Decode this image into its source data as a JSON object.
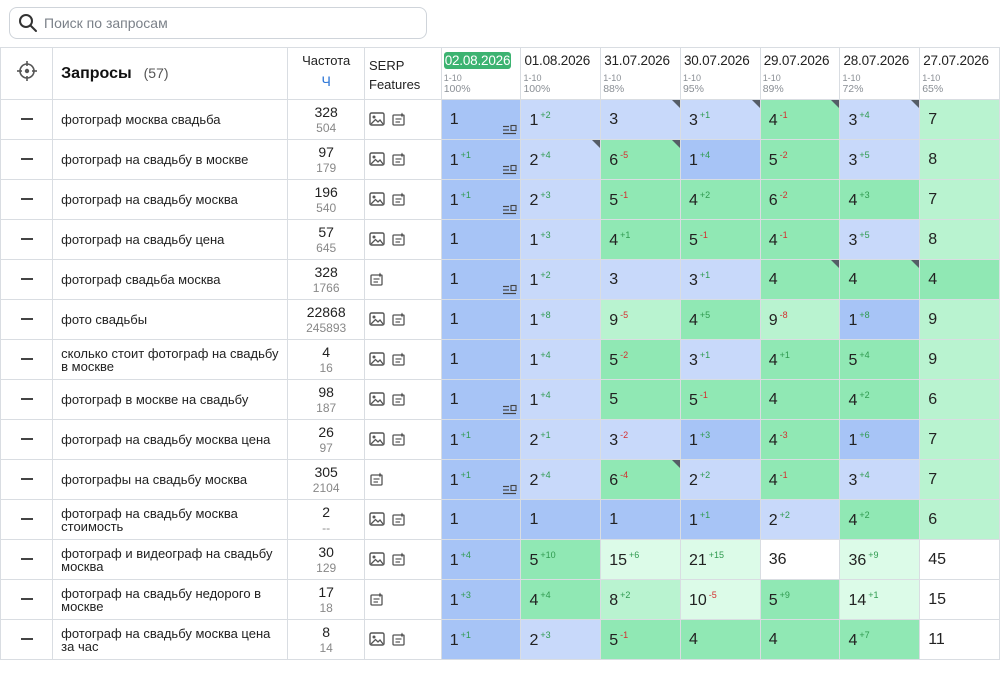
{
  "search": {
    "placeholder": "Поиск по запросам",
    "value": ""
  },
  "table": {
    "query_header": "Запросы",
    "query_count": "(57)",
    "freq_header": "Частота",
    "freq_unit": "Ч",
    "serp_header_1": "SERP",
    "serp_header_2": "Features",
    "dates": [
      {
        "date": "02.08.2026",
        "range": "1-10",
        "pct": "100%",
        "current": true
      },
      {
        "date": "01.08.2026",
        "range": "1-10",
        "pct": "100%",
        "current": false
      },
      {
        "date": "31.07.2026",
        "range": "1-10",
        "pct": "88%",
        "current": false
      },
      {
        "date": "30.07.2026",
        "range": "1-10",
        "pct": "95%",
        "current": false
      },
      {
        "date": "29.07.2026",
        "range": "1-10",
        "pct": "89%",
        "current": false
      },
      {
        "date": "28.07.2026",
        "range": "1-10",
        "pct": "72%",
        "current": false
      },
      {
        "date": "27.07.2026",
        "range": "1-10",
        "pct": "65%",
        "current": false
      }
    ],
    "rows": [
      {
        "query": "фотограф москва свадьба",
        "freq": "328",
        "freq_sub": "504",
        "serp": [
          "image-icon",
          "snippet-icon"
        ],
        "cells": [
          {
            "v": "1",
            "t": 1,
            "s": true
          },
          {
            "v": "1",
            "c": "+2",
            "t": 2
          },
          {
            "v": "3",
            "t": 2,
            "k": true
          },
          {
            "v": "3",
            "c": "+1",
            "t": 2,
            "k": true
          },
          {
            "v": "4",
            "c": "-1",
            "t": 3,
            "k": true
          },
          {
            "v": "3",
            "c": "+4",
            "t": 2,
            "k": true
          },
          {
            "v": "7",
            "t": 4
          }
        ]
      },
      {
        "query": "фотограф на свадьбу в москве",
        "freq": "97",
        "freq_sub": "179",
        "serp": [
          "image-icon",
          "snippet-icon"
        ],
        "cells": [
          {
            "v": "1",
            "c": "+1",
            "t": 1,
            "s": true
          },
          {
            "v": "2",
            "c": "+4",
            "t": 2,
            "k": true
          },
          {
            "v": "6",
            "c": "-5",
            "t": 3,
            "k": true
          },
          {
            "v": "1",
            "c": "+4",
            "t": 1
          },
          {
            "v": "5",
            "c": "-2",
            "t": 3
          },
          {
            "v": "3",
            "c": "+5",
            "t": 2
          },
          {
            "v": "8",
            "t": 4
          }
        ]
      },
      {
        "query": "фотограф на свадьбу москва",
        "freq": "196",
        "freq_sub": "540",
        "serp": [
          "image-icon",
          "snippet-icon"
        ],
        "cells": [
          {
            "v": "1",
            "c": "+1",
            "t": 1,
            "s": true
          },
          {
            "v": "2",
            "c": "+3",
            "t": 2
          },
          {
            "v": "5",
            "c": "-1",
            "t": 3
          },
          {
            "v": "4",
            "c": "+2",
            "t": 3
          },
          {
            "v": "6",
            "c": "-2",
            "t": 3
          },
          {
            "v": "4",
            "c": "+3",
            "t": 3
          },
          {
            "v": "7",
            "t": 4
          }
        ]
      },
      {
        "query": "фотограф на свадьбу цена",
        "freq": "57",
        "freq_sub": "645",
        "serp": [
          "image-icon",
          "snippet-icon"
        ],
        "cells": [
          {
            "v": "1",
            "t": 1
          },
          {
            "v": "1",
            "c": "+3",
            "t": 2
          },
          {
            "v": "4",
            "c": "+1",
            "t": 3
          },
          {
            "v": "5",
            "c": "-1",
            "t": 3
          },
          {
            "v": "4",
            "c": "-1",
            "t": 3
          },
          {
            "v": "3",
            "c": "+5",
            "t": 2
          },
          {
            "v": "8",
            "t": 4
          }
        ]
      },
      {
        "query": "фотограф свадьба москва",
        "freq": "328",
        "freq_sub": "1766",
        "serp": [
          "snippet-icon"
        ],
        "cells": [
          {
            "v": "1",
            "t": 1,
            "s": true
          },
          {
            "v": "1",
            "c": "+2",
            "t": 2
          },
          {
            "v": "3",
            "t": 2
          },
          {
            "v": "3",
            "c": "+1",
            "t": 2
          },
          {
            "v": "4",
            "t": 3,
            "k": true
          },
          {
            "v": "4",
            "t": 3,
            "k": true
          },
          {
            "v": "4",
            "t": 3
          }
        ]
      },
      {
        "query": "фото свадьбы",
        "freq": "22868",
        "freq_sub": "245893",
        "serp": [
          "image-icon",
          "snippet-icon"
        ],
        "cells": [
          {
            "v": "1",
            "t": 1
          },
          {
            "v": "1",
            "c": "+8",
            "t": 2
          },
          {
            "v": "9",
            "c": "-5",
            "t": 4
          },
          {
            "v": "4",
            "c": "+5",
            "t": 3
          },
          {
            "v": "9",
            "c": "-8",
            "t": 4
          },
          {
            "v": "1",
            "c": "+8",
            "t": 1
          },
          {
            "v": "9",
            "t": 4
          }
        ]
      },
      {
        "query": "сколько стоит фотограф на свадьбу в москве",
        "freq": "4",
        "freq_sub": "16",
        "serp": [
          "image-icon",
          "snippet-icon"
        ],
        "cells": [
          {
            "v": "1",
            "t": 1
          },
          {
            "v": "1",
            "c": "+4",
            "t": 2
          },
          {
            "v": "5",
            "c": "-2",
            "t": 3
          },
          {
            "v": "3",
            "c": "+1",
            "t": 2
          },
          {
            "v": "4",
            "c": "+1",
            "t": 3
          },
          {
            "v": "5",
            "c": "+4",
            "t": 3
          },
          {
            "v": "9",
            "t": 4
          }
        ]
      },
      {
        "query": "фотограф в москве на свадьбу",
        "freq": "98",
        "freq_sub": "187",
        "serp": [
          "image-icon",
          "snippet-icon"
        ],
        "cells": [
          {
            "v": "1",
            "t": 1,
            "s": true
          },
          {
            "v": "1",
            "c": "+4",
            "t": 2
          },
          {
            "v": "5",
            "t": 3
          },
          {
            "v": "5",
            "c": "-1",
            "t": 3
          },
          {
            "v": "4",
            "t": 3
          },
          {
            "v": "4",
            "c": "+2",
            "t": 3
          },
          {
            "v": "6",
            "t": 4
          }
        ]
      },
      {
        "query": "фотограф на свадьбу москва цена",
        "freq": "26",
        "freq_sub": "97",
        "serp": [
          "image-icon",
          "snippet-icon"
        ],
        "cells": [
          {
            "v": "1",
            "c": "+1",
            "t": 1
          },
          {
            "v": "2",
            "c": "+1",
            "t": 2
          },
          {
            "v": "3",
            "c": "-2",
            "t": 2
          },
          {
            "v": "1",
            "c": "+3",
            "t": 1
          },
          {
            "v": "4",
            "c": "-3",
            "t": 3
          },
          {
            "v": "1",
            "c": "+6",
            "t": 1
          },
          {
            "v": "7",
            "t": 4
          }
        ]
      },
      {
        "query": "фотографы на свадьбу москва",
        "freq": "305",
        "freq_sub": "2104",
        "serp": [
          "snippet-icon"
        ],
        "cells": [
          {
            "v": "1",
            "c": "+1",
            "t": 1,
            "s": true
          },
          {
            "v": "2",
            "c": "+4",
            "t": 2
          },
          {
            "v": "6",
            "c": "-4",
            "t": 3,
            "k": true
          },
          {
            "v": "2",
            "c": "+2",
            "t": 2
          },
          {
            "v": "4",
            "c": "-1",
            "t": 3
          },
          {
            "v": "3",
            "c": "+4",
            "t": 2
          },
          {
            "v": "7",
            "t": 4
          }
        ]
      },
      {
        "query": "фотограф на свадьбу москва стоимость",
        "freq": "2",
        "freq_sub": "--",
        "serp": [
          "image-icon",
          "snippet-icon"
        ],
        "cells": [
          {
            "v": "1",
            "t": 1
          },
          {
            "v": "1",
            "t": 1
          },
          {
            "v": "1",
            "t": 1
          },
          {
            "v": "1",
            "c": "+1",
            "t": 1
          },
          {
            "v": "2",
            "c": "+2",
            "t": 2
          },
          {
            "v": "4",
            "c": "+2",
            "t": 3
          },
          {
            "v": "6",
            "t": 4
          }
        ]
      },
      {
        "query": "фотограф и видеограф на свадьбу москва",
        "freq": "30",
        "freq_sub": "129",
        "serp": [
          "image-icon",
          "snippet-icon"
        ],
        "cells": [
          {
            "v": "1",
            "c": "+4",
            "t": 1
          },
          {
            "v": "5",
            "c": "+10",
            "t": 3
          },
          {
            "v": "15",
            "c": "+6",
            "t": 5
          },
          {
            "v": "21",
            "c": "+15",
            "t": 5
          },
          {
            "v": "36",
            "t": 6
          },
          {
            "v": "36",
            "c": "+9",
            "t": 5
          },
          {
            "v": "45",
            "t": 6
          }
        ]
      },
      {
        "query": "фотограф на свадьбу недорого в москве",
        "freq": "17",
        "freq_sub": "18",
        "serp": [
          "snippet-icon"
        ],
        "cells": [
          {
            "v": "1",
            "c": "+3",
            "t": 1
          },
          {
            "v": "4",
            "c": "+4",
            "t": 3
          },
          {
            "v": "8",
            "c": "+2",
            "t": 4
          },
          {
            "v": "10",
            "c": "-5",
            "t": 5
          },
          {
            "v": "5",
            "c": "+9",
            "t": 3
          },
          {
            "v": "14",
            "c": "+1",
            "t": 5
          },
          {
            "v": "15",
            "t": 6
          }
        ]
      },
      {
        "query": "фотограф на свадьбу москва цена за час",
        "freq": "8",
        "freq_sub": "14",
        "serp": [
          "image-icon",
          "snippet-icon"
        ],
        "cells": [
          {
            "v": "1",
            "c": "+1",
            "t": 1
          },
          {
            "v": "2",
            "c": "+3",
            "t": 2
          },
          {
            "v": "5",
            "c": "-1",
            "t": 3
          },
          {
            "v": "4",
            "t": 3
          },
          {
            "v": "4",
            "t": 3
          },
          {
            "v": "4",
            "c": "+7",
            "t": 3
          },
          {
            "v": "11",
            "t": 6
          }
        ]
      }
    ]
  }
}
